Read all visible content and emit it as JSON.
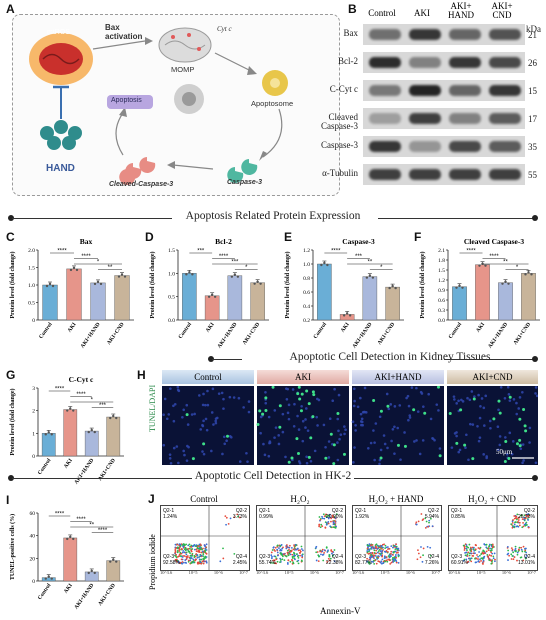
{
  "panelA": {
    "label": "A",
    "mros": "mtROS",
    "bax": "Bax activation",
    "cytc": "Cyt c",
    "momp": "MOMP",
    "apoptosome": "Apoptosome",
    "apoptosis": "Apoptosis",
    "caspase3": "Caspase-3",
    "cleaved": "Cleaved-Caspase-3",
    "hand": "HAND"
  },
  "panelB": {
    "label": "B",
    "columns": [
      "Control",
      "AKI",
      "AKI+ HAND",
      "AKI+ CND"
    ],
    "kda_label": "kDa",
    "rows": [
      {
        "name": "Bax",
        "kda": "21",
        "levels": [
          0.55,
          0.85,
          0.6,
          0.7
        ]
      },
      {
        "name": "Bcl-2",
        "kda": "26",
        "levels": [
          0.9,
          0.45,
          0.85,
          0.75
        ]
      },
      {
        "name": "C-Cyt c",
        "kda": "15",
        "levels": [
          0.5,
          0.95,
          0.6,
          0.85
        ]
      },
      {
        "name": "Cleaved Caspase-3",
        "kda": "17",
        "levels": [
          0.3,
          0.8,
          0.45,
          0.65
        ]
      },
      {
        "name": "Caspase-3",
        "kda": "35",
        "levels": [
          0.85,
          0.35,
          0.75,
          0.65
        ]
      },
      {
        "name": "α-Tubulin",
        "kda": "55",
        "levels": [
          0.8,
          0.8,
          0.8,
          0.8
        ]
      }
    ]
  },
  "sections": {
    "s1": "Apoptosis Related Protein Expression",
    "s2": "Apoptotic Cell Detection in Kidney Tissues",
    "s3": "Apoptotic Cell Detection in HK-2"
  },
  "chart_data": [
    {
      "panel": "C",
      "type": "bar",
      "title": "Bax",
      "ylabel": "Protein level (fold change)",
      "categories": [
        "Control",
        "AKI",
        "AKI+HAND",
        "AKI+CND"
      ],
      "values": [
        1.0,
        1.46,
        1.06,
        1.27
      ],
      "ylim": [
        0,
        2.0
      ],
      "yticks": [
        "0",
        "0.5",
        "1.0",
        "1.5",
        "2.0"
      ],
      "sig": [
        {
          "a": 0,
          "b": 1,
          "t": "****"
        },
        {
          "a": 1,
          "b": 2,
          "t": "****"
        },
        {
          "a": 1,
          "b": 3,
          "t": "*"
        },
        {
          "a": 2,
          "b": 3,
          "t": "**"
        }
      ]
    },
    {
      "panel": "D",
      "type": "bar",
      "title": "Bcl-2",
      "ylabel": "Protein level (fold change)",
      "categories": [
        "Control",
        "AKI",
        "AKI+HAND",
        "AKI+CND"
      ],
      "values": [
        1.0,
        0.52,
        0.95,
        0.8
      ],
      "ylim": [
        0,
        1.5
      ],
      "yticks": [
        "0.0",
        "0.5",
        "1.0",
        "1.5"
      ],
      "sig": [
        {
          "a": 0,
          "b": 1,
          "t": "***"
        },
        {
          "a": 1,
          "b": 2,
          "t": "****"
        },
        {
          "a": 1,
          "b": 3,
          "t": "***"
        },
        {
          "a": 2,
          "b": 3,
          "t": "*"
        }
      ]
    },
    {
      "panel": "E",
      "type": "bar",
      "title": "Caspase-3",
      "ylabel": "Protein level (fold change)",
      "categories": [
        "Control",
        "AKI",
        "AKI+HAND",
        "AKI+CND"
      ],
      "values": [
        1.0,
        0.28,
        0.82,
        0.67
      ],
      "ylim": [
        0.2,
        1.2
      ],
      "yticks": [
        "0.2",
        "0.4",
        "0.6",
        "0.8",
        "1.0",
        "1.2"
      ],
      "sig": [
        {
          "a": 0,
          "b": 1,
          "t": "****"
        },
        {
          "a": 1,
          "b": 2,
          "t": "***"
        },
        {
          "a": 1,
          "b": 3,
          "t": "**"
        },
        {
          "a": 2,
          "b": 3,
          "t": "*"
        }
      ]
    },
    {
      "panel": "F",
      "type": "bar",
      "title": "Cleaved Caspase-3",
      "ylabel": "Protein level (fold change)",
      "categories": [
        "Control",
        "AKI",
        "AKI+HAND",
        "AKI+CND"
      ],
      "values": [
        1.0,
        1.66,
        1.12,
        1.4
      ],
      "ylim": [
        0,
        2.1
      ],
      "yticks": [
        "0.0",
        "0.3",
        "0.6",
        "0.9",
        "1.2",
        "1.5",
        "1.8",
        "2.1"
      ],
      "sig": [
        {
          "a": 0,
          "b": 1,
          "t": "****"
        },
        {
          "a": 1,
          "b": 2,
          "t": "****"
        },
        {
          "a": 1,
          "b": 3,
          "t": "**"
        },
        {
          "a": 2,
          "b": 3,
          "t": "*"
        }
      ]
    },
    {
      "panel": "G",
      "type": "bar",
      "title": "C-Cyt c",
      "ylabel": "Protein level (fold change)",
      "categories": [
        "Control",
        "AKI",
        "AKI+HAND",
        "AKI+CND"
      ],
      "values": [
        1.0,
        2.05,
        1.1,
        1.72
      ],
      "ylim": [
        0,
        3
      ],
      "yticks": [
        "0",
        "1",
        "2",
        "3"
      ],
      "sig": [
        {
          "a": 0,
          "b": 1,
          "t": "****"
        },
        {
          "a": 1,
          "b": 2,
          "t": "****"
        },
        {
          "a": 1,
          "b": 3,
          "t": "*"
        },
        {
          "a": 2,
          "b": 3,
          "t": "***"
        }
      ]
    },
    {
      "panel": "I",
      "type": "bar",
      "title": "",
      "ylabel": "TUNEL-positive cells (%)",
      "categories": [
        "Control",
        "AKI",
        "AKI+HAND",
        "AKI+CND"
      ],
      "values": [
        3,
        38,
        8,
        18
      ],
      "ylim": [
        0,
        60
      ],
      "yticks": [
        "0",
        "20",
        "40",
        "60"
      ],
      "sig": [
        {
          "a": 0,
          "b": 1,
          "t": "****"
        },
        {
          "a": 1,
          "b": 2,
          "t": "****"
        },
        {
          "a": 1,
          "b": 3,
          "t": "**"
        },
        {
          "a": 2,
          "b": 3,
          "t": "****"
        }
      ]
    }
  ],
  "bar_colors": [
    "#6aaed6",
    "#e6958a",
    "#a9b8dc",
    "#c8b49a"
  ],
  "panelH": {
    "label": "H",
    "columns": [
      "Control",
      "AKI",
      "AKI+HAND",
      "AKI+CND"
    ],
    "side": "TUNEL/DAPI",
    "scale": "50μm"
  },
  "panelJ": {
    "label": "J",
    "ylabel": "Propidium iodide",
    "xlabel": "Annexin-V",
    "ticks": [
      "10^3.6",
      "10^5",
      "10^6",
      "10^7"
    ],
    "plots": [
      {
        "title": "Control",
        "q1": "Q2-1\n1.24%",
        "q2": "Q2-2\n3.73%",
        "q3": "Q2-3\n92.58%",
        "q4": "Q2-4\n2.45%"
      },
      {
        "title": "H2O2",
        "q1": "Q2-1\n0.99%",
        "q2": "Q2-2\n20.90%",
        "q3": "Q2-3\n55.74%",
        "q4": "Q2-4\n22.38%"
      },
      {
        "title": "H2O2 + HAND",
        "q1": "Q2-1\n1.92%",
        "q2": "Q2-2\n5.94%",
        "q3": "Q2-3\n82.77%",
        "q4": "Q2-4\n7.26%"
      },
      {
        "title": "H2O2 + CND",
        "q1": "Q2-1\n0.85%",
        "q2": "Q2-2\n25.23%",
        "q3": "Q2-3\n60.91%",
        "q4": "Q2-4\n13.01%"
      }
    ]
  }
}
